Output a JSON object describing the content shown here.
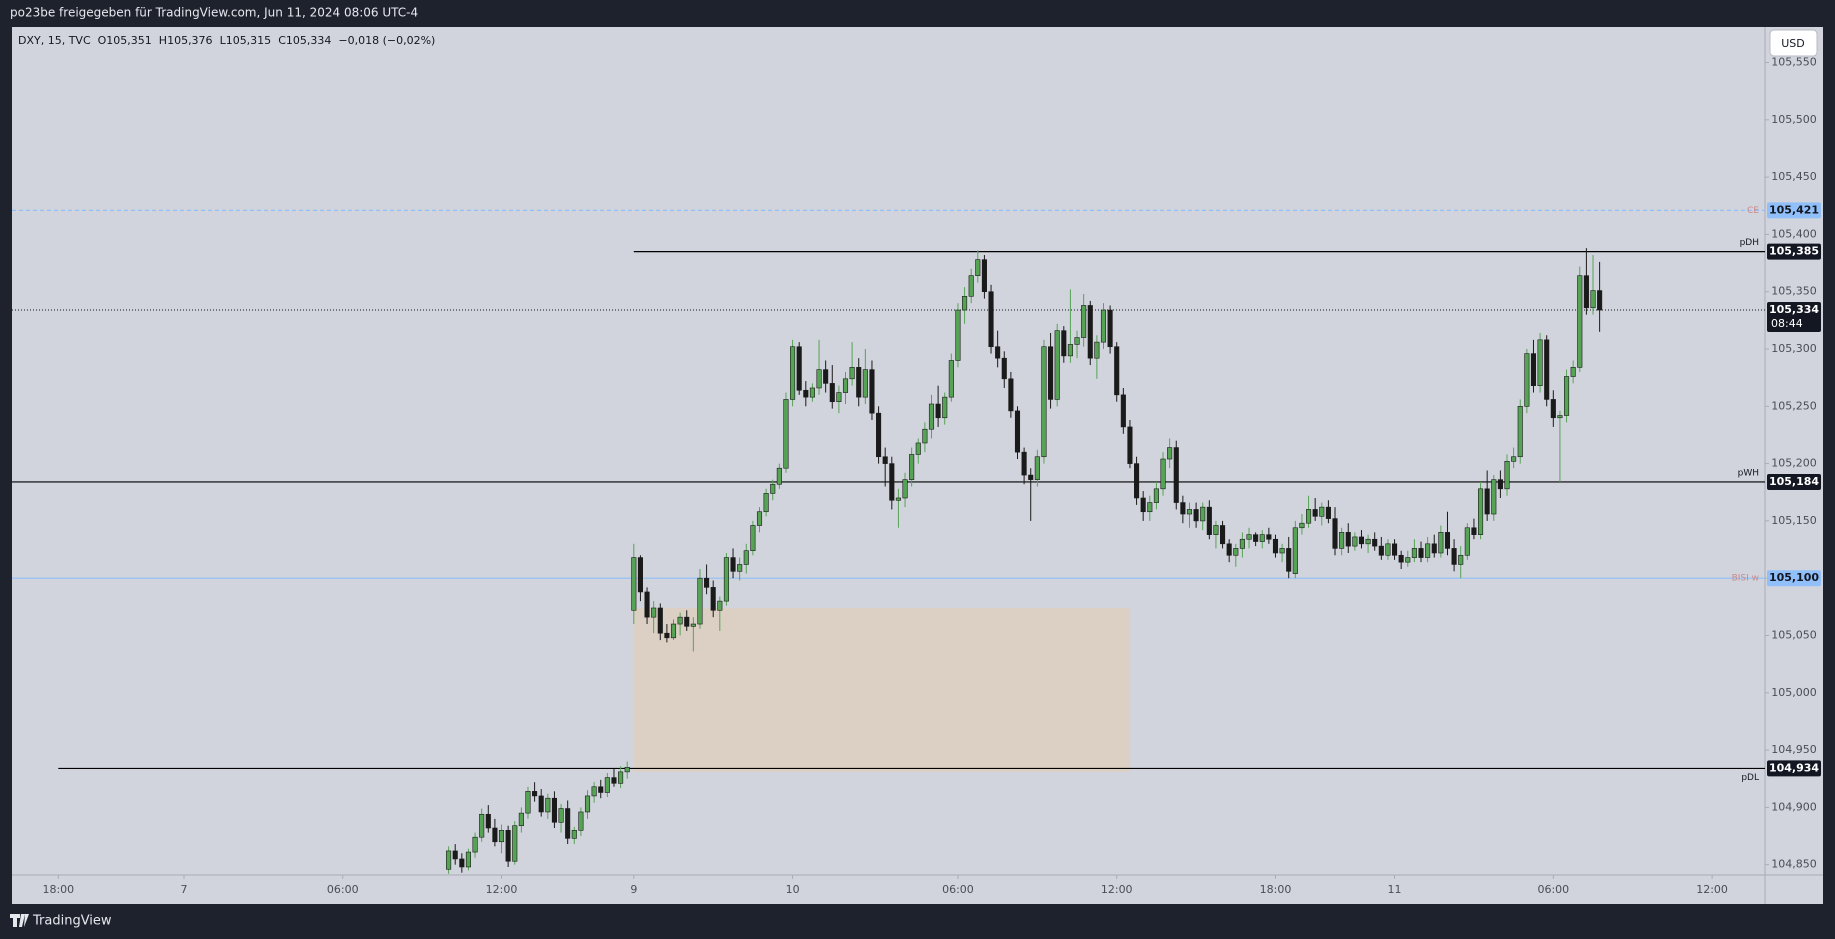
{
  "header": {
    "title": "po23be freigegeben für TradingView.com, Jun 11, 2024 08:06 UTC-4"
  },
  "footer": {
    "brand": "TradingView"
  },
  "chart_data": {
    "type": "candlestick",
    "legend": [
      "DXY, 15, TVC",
      "O105,351",
      "H105,376",
      "L105,315",
      "C105,334",
      "−0,018 (−0,02%)"
    ],
    "currency": "USD",
    "up_color": "#56a356",
    "down_color": "#1a1a1a",
    "ylim": [
      104.841,
      105.581
    ],
    "yticks": [
      {
        "value": 104.85,
        "label": "104,850"
      },
      {
        "value": 104.9,
        "label": "104,900"
      },
      {
        "value": 104.95,
        "label": "104,950"
      },
      {
        "value": 105.0,
        "label": "105,000"
      },
      {
        "value": 105.05,
        "label": "105,050"
      },
      {
        "value": 105.1,
        "label": "105,100"
      },
      {
        "value": 105.15,
        "label": "105,150"
      },
      {
        "value": 105.2,
        "label": "105,200"
      },
      {
        "value": 105.25,
        "label": "105,250"
      },
      {
        "value": 105.3,
        "label": "105,300"
      },
      {
        "value": 105.35,
        "label": "105,350"
      },
      {
        "value": 105.4,
        "label": "105,400"
      },
      {
        "value": 105.45,
        "label": "105,450"
      },
      {
        "value": 105.5,
        "label": "105,500"
      },
      {
        "value": 105.55,
        "label": "105,550"
      }
    ],
    "xlim": [
      -66,
      199
    ],
    "xticks": [
      {
        "value": -59,
        "label": "18:00"
      },
      {
        "value": -40,
        "label": "7"
      },
      {
        "value": -16,
        "label": "06:00"
      },
      {
        "value": 8,
        "label": "12:00"
      },
      {
        "value": 28,
        "label": "9"
      },
      {
        "value": 52,
        "label": "10"
      },
      {
        "value": 77,
        "label": "06:00"
      },
      {
        "value": 101,
        "label": "12:00"
      },
      {
        "value": 125,
        "label": "18:00"
      },
      {
        "value": 143,
        "label": "11"
      },
      {
        "value": 167,
        "label": "06:00"
      },
      {
        "value": 191,
        "label": "12:00"
      }
    ],
    "zone": {
      "x": [
        28,
        103
      ],
      "y": [
        104.931,
        105.074
      ],
      "color": "#dcd0c4"
    },
    "levels": [
      {
        "name": "CE",
        "value": 105.421,
        "label": "105,421",
        "style": "dashed",
        "color": "#90bff9",
        "start": -66
      },
      {
        "name": "pDH",
        "value": 105.385,
        "label": "105,385",
        "style": "solid",
        "color": "#000000",
        "start": 28
      },
      {
        "name": "pWH",
        "value": 105.184,
        "label": "105,184",
        "style": "solid",
        "color": "#000000",
        "start": -66
      },
      {
        "name": "BISI w",
        "value": 105.1,
        "label": "105,100",
        "style": "solid",
        "color": "#90bff9",
        "start": -66
      },
      {
        "name": "pDL",
        "value": 104.934,
        "label": "104,934",
        "style": "solid",
        "color": "#000000",
        "start": -59
      }
    ],
    "last_price": {
      "value": 105.334,
      "label": "105,334",
      "countdown": "08:44"
    },
    "candles": [
      [
        104.846,
        104.866,
        104.842,
        104.862
      ],
      [
        104.862,
        104.868,
        104.85,
        104.855
      ],
      [
        104.855,
        104.86,
        104.843,
        104.848
      ],
      [
        104.848,
        104.864,
        104.845,
        104.861
      ],
      [
        104.861,
        104.878,
        104.856,
        104.874
      ],
      [
        104.874,
        104.899,
        104.87,
        104.894
      ],
      [
        104.894,
        104.902,
        104.878,
        104.882
      ],
      [
        104.882,
        104.89,
        104.866,
        104.87
      ],
      [
        104.87,
        104.885,
        104.86,
        104.88
      ],
      [
        104.88,
        104.884,
        104.848,
        104.853
      ],
      [
        104.853,
        104.888,
        104.85,
        104.884
      ],
      [
        104.884,
        104.9,
        104.878,
        104.895
      ],
      [
        104.895,
        104.918,
        104.89,
        104.914
      ],
      [
        104.914,
        104.922,
        104.905,
        104.91
      ],
      [
        104.91,
        104.916,
        104.892,
        104.896
      ],
      [
        104.896,
        104.912,
        104.89,
        104.908
      ],
      [
        104.908,
        104.914,
        104.882,
        104.887
      ],
      [
        104.887,
        104.903,
        104.878,
        104.899
      ],
      [
        104.899,
        104.906,
        104.868,
        104.873
      ],
      [
        104.873,
        104.883,
        104.868,
        104.88
      ],
      [
        104.88,
        104.9,
        104.875,
        104.896
      ],
      [
        104.896,
        104.915,
        104.89,
        104.91
      ],
      [
        104.91,
        104.922,
        104.904,
        104.918
      ],
      [
        104.918,
        104.924,
        104.908,
        104.913
      ],
      [
        104.913,
        104.93,
        104.909,
        104.926
      ],
      [
        104.926,
        104.934,
        104.918,
        104.921
      ],
      [
        104.921,
        104.936,
        104.917,
        104.931
      ],
      [
        104.931,
        104.94,
        104.925,
        104.935
      ],
      [
        105.072,
        105.13,
        105.06,
        105.118
      ],
      [
        105.118,
        105.12,
        105.08,
        105.088
      ],
      [
        105.088,
        105.092,
        105.06,
        105.066
      ],
      [
        105.066,
        105.08,
        105.052,
        105.074
      ],
      [
        105.074,
        105.078,
        105.046,
        105.052
      ],
      [
        105.052,
        105.06,
        105.044,
        105.048
      ],
      [
        105.048,
        105.064,
        105.046,
        105.06
      ],
      [
        105.06,
        105.07,
        105.05,
        105.066
      ],
      [
        105.066,
        105.072,
        105.054,
        105.058
      ],
      [
        105.058,
        105.066,
        105.036,
        105.06
      ],
      [
        105.06,
        105.108,
        105.056,
        105.1
      ],
      [
        105.1,
        105.112,
        105.086,
        105.092
      ],
      [
        105.092,
        105.098,
        105.066,
        105.072
      ],
      [
        105.072,
        105.084,
        105.054,
        105.08
      ],
      [
        105.08,
        105.122,
        105.076,
        105.118
      ],
      [
        105.118,
        105.126,
        105.1,
        105.106
      ],
      [
        105.106,
        105.118,
        105.098,
        105.112
      ],
      [
        105.112,
        105.13,
        105.104,
        105.124
      ],
      [
        105.124,
        105.15,
        105.12,
        105.146
      ],
      [
        105.146,
        105.162,
        105.14,
        105.158
      ],
      [
        105.158,
        105.178,
        105.154,
        105.174
      ],
      [
        105.174,
        105.186,
        105.168,
        105.182
      ],
      [
        105.182,
        105.2,
        105.178,
        105.196
      ],
      [
        105.196,
        105.262,
        105.192,
        105.256
      ],
      [
        105.256,
        105.308,
        105.25,
        105.302
      ],
      [
        105.302,
        105.306,
        105.26,
        105.264
      ],
      [
        105.264,
        105.272,
        105.25,
        105.258
      ],
      [
        105.258,
        105.27,
        105.254,
        105.266
      ],
      [
        105.266,
        105.308,
        105.26,
        105.282
      ],
      [
        105.282,
        105.29,
        105.262,
        105.27
      ],
      [
        105.27,
        105.286,
        105.248,
        105.254
      ],
      [
        105.254,
        105.268,
        105.244,
        105.262
      ],
      [
        105.262,
        105.28,
        105.252,
        105.274
      ],
      [
        105.274,
        105.306,
        105.268,
        105.284
      ],
      [
        105.284,
        105.292,
        105.25,
        105.258
      ],
      [
        105.258,
        105.3,
        105.252,
        105.282
      ],
      [
        105.282,
        105.29,
        105.238,
        105.244
      ],
      [
        105.244,
        105.25,
        105.2,
        105.206
      ],
      [
        105.206,
        105.214,
        105.18,
        105.2
      ],
      [
        105.2,
        105.206,
        105.16,
        105.168
      ],
      [
        105.168,
        105.178,
        105.144,
        105.17
      ],
      [
        105.17,
        105.192,
        105.162,
        105.186
      ],
      [
        105.186,
        105.214,
        105.18,
        105.208
      ],
      [
        105.208,
        105.222,
        105.2,
        105.218
      ],
      [
        105.218,
        105.236,
        105.21,
        105.23
      ],
      [
        105.23,
        105.26,
        105.222,
        105.252
      ],
      [
        105.252,
        105.268,
        105.232,
        105.24
      ],
      [
        105.24,
        105.262,
        105.234,
        105.258
      ],
      [
        105.258,
        105.296,
        105.254,
        105.29
      ],
      [
        105.29,
        105.34,
        105.284,
        105.334
      ],
      [
        105.334,
        105.354,
        105.322,
        105.346
      ],
      [
        105.346,
        105.37,
        105.34,
        105.364
      ],
      [
        105.364,
        105.386,
        105.358,
        105.378
      ],
      [
        105.378,
        105.382,
        105.344,
        105.35
      ],
      [
        105.35,
        105.356,
        105.296,
        105.302
      ],
      [
        105.302,
        105.316,
        105.284,
        105.292
      ],
      [
        105.292,
        105.298,
        105.266,
        105.274
      ],
      [
        105.274,
        105.28,
        105.24,
        105.246
      ],
      [
        105.246,
        105.25,
        105.204,
        105.21
      ],
      [
        105.21,
        105.214,
        105.182,
        105.19
      ],
      [
        105.19,
        105.196,
        105.15,
        105.186
      ],
      [
        105.186,
        105.212,
        105.18,
        105.206
      ],
      [
        105.206,
        105.308,
        105.2,
        105.302
      ],
      [
        105.302,
        105.314,
        105.248,
        105.256
      ],
      [
        105.256,
        105.322,
        105.25,
        105.316
      ],
      [
        105.316,
        105.32,
        105.288,
        105.294
      ],
      [
        105.294,
        105.352,
        105.288,
        105.304
      ],
      [
        105.304,
        105.316,
        105.292,
        105.31
      ],
      [
        105.31,
        105.348,
        105.302,
        105.338
      ],
      [
        105.338,
        105.342,
        105.286,
        105.292
      ],
      [
        105.292,
        105.312,
        105.274,
        105.306
      ],
      [
        105.306,
        105.34,
        105.3,
        105.334
      ],
      [
        105.334,
        105.338,
        105.296,
        105.302
      ],
      [
        105.302,
        105.306,
        105.254,
        105.26
      ],
      [
        105.26,
        105.266,
        105.226,
        105.232
      ],
      [
        105.232,
        105.238,
        105.196,
        105.2
      ],
      [
        105.2,
        105.206,
        105.164,
        105.17
      ],
      [
        105.17,
        105.176,
        105.15,
        105.158
      ],
      [
        105.158,
        105.172,
        105.15,
        105.166
      ],
      [
        105.166,
        105.184,
        105.16,
        105.178
      ],
      [
        105.178,
        105.21,
        105.172,
        105.204
      ],
      [
        105.204,
        105.222,
        105.196,
        105.214
      ],
      [
        105.214,
        105.22,
        105.16,
        105.166
      ],
      [
        105.166,
        105.172,
        105.148,
        105.156
      ],
      [
        105.156,
        105.166,
        105.144,
        105.16
      ],
      [
        105.16,
        105.166,
        105.144,
        105.15
      ],
      [
        105.15,
        105.166,
        105.142,
        105.162
      ],
      [
        105.162,
        105.168,
        105.134,
        105.138
      ],
      [
        105.138,
        105.15,
        105.126,
        105.146
      ],
      [
        105.146,
        105.15,
        105.126,
        105.13
      ],
      [
        105.13,
        105.134,
        105.114,
        105.12
      ],
      [
        105.12,
        105.13,
        105.11,
        105.126
      ],
      [
        105.126,
        105.14,
        105.118,
        105.134
      ],
      [
        105.134,
        105.144,
        105.126,
        105.138
      ],
      [
        105.138,
        105.14,
        105.128,
        105.132
      ],
      [
        105.132,
        105.142,
        105.126,
        105.138
      ],
      [
        105.138,
        105.144,
        105.13,
        105.134
      ],
      [
        105.134,
        105.138,
        105.118,
        105.122
      ],
      [
        105.122,
        105.13,
        105.114,
        105.126
      ],
      [
        105.126,
        105.136,
        105.1,
        105.106
      ],
      [
        105.104,
        105.15,
        105.1,
        105.144
      ],
      [
        105.144,
        105.156,
        105.138,
        105.148
      ],
      [
        105.148,
        105.172,
        105.144,
        105.16
      ],
      [
        105.16,
        105.17,
        105.15,
        105.154
      ],
      [
        105.154,
        105.166,
        105.146,
        105.162
      ],
      [
        105.162,
        105.168,
        105.148,
        105.152
      ],
      [
        105.152,
        105.162,
        105.12,
        105.126
      ],
      [
        105.126,
        105.144,
        105.12,
        105.14
      ],
      [
        105.14,
        105.148,
        105.122,
        105.128
      ],
      [
        105.128,
        105.14,
        105.124,
        105.136
      ],
      [
        105.136,
        105.142,
        105.126,
        105.13
      ],
      [
        105.13,
        105.138,
        105.122,
        105.134
      ],
      [
        105.134,
        105.14,
        105.124,
        105.128
      ],
      [
        105.128,
        105.136,
        105.116,
        105.12
      ],
      [
        105.12,
        105.134,
        105.116,
        105.13
      ],
      [
        105.13,
        105.134,
        105.116,
        105.12
      ],
      [
        105.12,
        105.124,
        105.108,
        105.114
      ],
      [
        105.114,
        105.124,
        105.11,
        105.118
      ],
      [
        105.118,
        105.134,
        105.114,
        105.126
      ],
      [
        105.126,
        105.132,
        105.114,
        105.118
      ],
      [
        105.118,
        105.136,
        105.114,
        105.13
      ],
      [
        105.13,
        105.138,
        105.118,
        105.122
      ],
      [
        105.122,
        105.146,
        105.118,
        105.14
      ],
      [
        105.14,
        105.158,
        105.12,
        105.126
      ],
      [
        105.126,
        105.134,
        105.106,
        105.112
      ],
      [
        105.112,
        105.128,
        105.1,
        105.12
      ],
      [
        105.12,
        105.148,
        105.116,
        105.144
      ],
      [
        105.144,
        105.152,
        105.134,
        105.138
      ],
      [
        105.138,
        105.184,
        105.134,
        105.178
      ],
      [
        105.178,
        105.194,
        105.15,
        105.156
      ],
      [
        105.156,
        105.19,
        105.15,
        105.186
      ],
      [
        105.186,
        105.194,
        105.17,
        105.178
      ],
      [
        105.178,
        105.208,
        105.172,
        105.202
      ],
      [
        105.202,
        105.214,
        105.196,
        105.206
      ],
      [
        105.206,
        105.256,
        105.2,
        105.25
      ],
      [
        105.25,
        105.3,
        105.244,
        105.296
      ],
      [
        105.296,
        105.308,
        105.262,
        105.268
      ],
      [
        105.268,
        105.314,
        105.262,
        105.308
      ],
      [
        105.308,
        105.312,
        105.25,
        105.256
      ],
      [
        105.256,
        105.264,
        105.232,
        105.24
      ],
      [
        105.24,
        105.246,
        105.184,
        105.242
      ],
      [
        105.242,
        105.282,
        105.236,
        105.276
      ],
      [
        105.276,
        105.29,
        105.27,
        105.284
      ],
      [
        105.284,
        105.372,
        105.28,
        105.364
      ],
      [
        105.364,
        105.388,
        105.33,
        105.336
      ],
      [
        105.336,
        105.382,
        105.33,
        105.351
      ],
      [
        105.351,
        105.376,
        105.315,
        105.334
      ]
    ]
  }
}
